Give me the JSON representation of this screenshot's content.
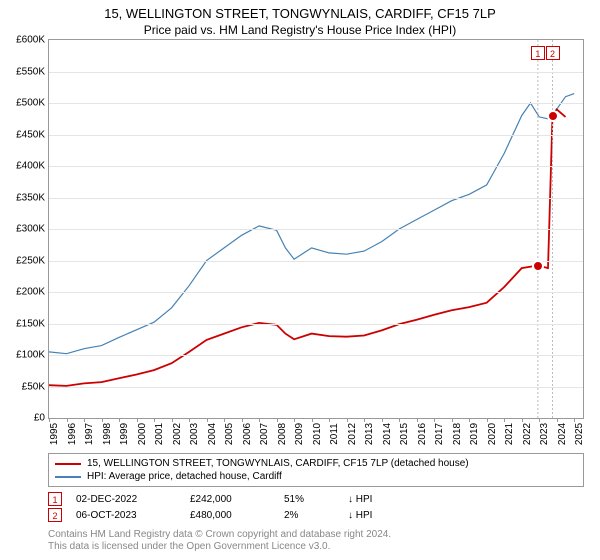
{
  "title": "15, WELLINGTON STREET, TONGWYNLAIS, CARDIFF, CF15 7LP",
  "subtitle": "Price paid vs. HM Land Registry's House Price Index (HPI)",
  "chart": {
    "type": "line",
    "xlim": [
      1995,
      2025.5
    ],
    "ylim": [
      0,
      600000
    ],
    "ytick_step": 50000,
    "yticks": [
      "£0",
      "£50K",
      "£100K",
      "£150K",
      "£200K",
      "£250K",
      "£300K",
      "£350K",
      "£400K",
      "£450K",
      "£500K",
      "£550K",
      "£600K"
    ],
    "xticks": [
      1995,
      1996,
      1997,
      1998,
      1999,
      2000,
      2001,
      2002,
      2003,
      2004,
      2005,
      2006,
      2007,
      2008,
      2009,
      2010,
      2011,
      2012,
      2013,
      2014,
      2015,
      2016,
      2017,
      2018,
      2019,
      2020,
      2021,
      2022,
      2023,
      2024,
      2025
    ],
    "grid_color": "#e5e5e5",
    "background_color": "#ffffff",
    "series": [
      {
        "name": "hpi",
        "color": "#4682b4",
        "width": 1.2,
        "points": [
          [
            1995,
            105000
          ],
          [
            1996,
            102000
          ],
          [
            1997,
            110000
          ],
          [
            1998,
            115000
          ],
          [
            1999,
            128000
          ],
          [
            2000,
            140000
          ],
          [
            2001,
            152000
          ],
          [
            2002,
            175000
          ],
          [
            2003,
            210000
          ],
          [
            2004,
            250000
          ],
          [
            2005,
            270000
          ],
          [
            2006,
            290000
          ],
          [
            2007,
            305000
          ],
          [
            2008,
            298000
          ],
          [
            2008.5,
            270000
          ],
          [
            2009,
            252000
          ],
          [
            2010,
            270000
          ],
          [
            2011,
            262000
          ],
          [
            2012,
            260000
          ],
          [
            2013,
            265000
          ],
          [
            2014,
            280000
          ],
          [
            2015,
            300000
          ],
          [
            2016,
            315000
          ],
          [
            2017,
            330000
          ],
          [
            2018,
            345000
          ],
          [
            2019,
            355000
          ],
          [
            2020,
            370000
          ],
          [
            2021,
            420000
          ],
          [
            2022,
            480000
          ],
          [
            2022.5,
            500000
          ],
          [
            2023,
            478000
          ],
          [
            2023.5,
            475000
          ],
          [
            2024,
            490000
          ],
          [
            2024.5,
            510000
          ],
          [
            2025,
            515000
          ]
        ]
      },
      {
        "name": "property",
        "color": "#cc0000",
        "width": 1.8,
        "points": [
          [
            1995,
            52000
          ],
          [
            1996,
            51000
          ],
          [
            1997,
            55000
          ],
          [
            1998,
            57000
          ],
          [
            1999,
            63000
          ],
          [
            2000,
            69000
          ],
          [
            2001,
            76000
          ],
          [
            2002,
            87000
          ],
          [
            2003,
            105000
          ],
          [
            2004,
            124000
          ],
          [
            2005,
            134000
          ],
          [
            2006,
            144000
          ],
          [
            2007,
            151000
          ],
          [
            2008,
            148000
          ],
          [
            2008.5,
            134000
          ],
          [
            2009,
            125000
          ],
          [
            2010,
            134000
          ],
          [
            2011,
            130000
          ],
          [
            2012,
            129000
          ],
          [
            2013,
            131000
          ],
          [
            2014,
            139000
          ],
          [
            2015,
            149000
          ],
          [
            2016,
            156000
          ],
          [
            2017,
            164000
          ],
          [
            2018,
            171000
          ],
          [
            2019,
            176000
          ],
          [
            2020,
            183000
          ],
          [
            2021,
            208000
          ],
          [
            2022,
            238000
          ],
          [
            2022.92,
            242000
          ],
          [
            2022.93,
            242000
          ],
          [
            2023.5,
            238000
          ],
          [
            2023.76,
            480000
          ],
          [
            2024,
            490000
          ],
          [
            2024.5,
            478000
          ]
        ]
      }
    ],
    "sale_markers": [
      {
        "n": "1",
        "x": 2022.92,
        "y": 242000,
        "color": "#cc0000",
        "box_top": 50000
      },
      {
        "n": "2",
        "x": 2023.76,
        "y": 480000,
        "color": "#cc0000",
        "box_top": 50000
      }
    ]
  },
  "legend": [
    {
      "color": "#cc0000",
      "label": "15, WELLINGTON STREET, TONGWYNLAIS, CARDIFF, CF15 7LP (detached house)"
    },
    {
      "color": "#4682b4",
      "label": "HPI: Average price, detached house, Cardiff"
    }
  ],
  "sales": [
    {
      "n": "1",
      "color": "#cc0000",
      "date": "02-DEC-2022",
      "price": "£242,000",
      "pct": "51%",
      "arrow": "↓",
      "vs": "HPI"
    },
    {
      "n": "2",
      "color": "#cc0000",
      "date": "06-OCT-2023",
      "price": "£480,000",
      "pct": "2%",
      "arrow": "↓",
      "vs": "HPI"
    }
  ],
  "footnote1": "Contains HM Land Registry data © Crown copyright and database right 2024.",
  "footnote2": "This data is licensed under the Open Government Licence v3.0."
}
